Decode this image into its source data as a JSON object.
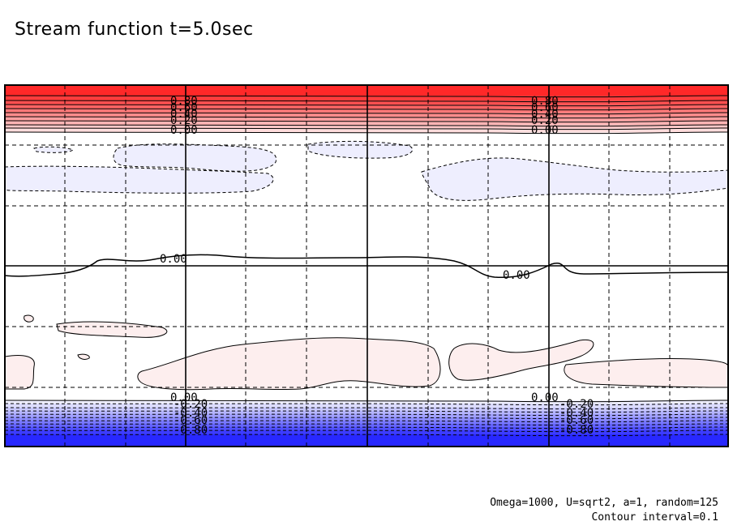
{
  "chart_data": {
    "type": "contour",
    "title": "Stream function t=5.0sec",
    "subtitle": "Omega=1000, U=sqrt2, a=1, random=125",
    "annotation": "Contour interval=0.1",
    "contour_interval": 0.1,
    "value_range": [
      -1.0,
      1.0
    ],
    "colors": {
      "positive": "#ff2a2a",
      "negative": "#2a2aff",
      "pale_positive": "#fdeeee",
      "pale_negative": "#eeeefe"
    },
    "grid": true,
    "contour_labels_top": [
      "0.80",
      "0.60",
      "0.40",
      "0.20",
      "0.00"
    ],
    "contour_labels_bottom": [
      "0.00",
      "-0.20",
      "-0.40",
      "-0.60",
      "-0.80"
    ],
    "midline_labels": [
      "0.00",
      "0.00"
    ]
  }
}
